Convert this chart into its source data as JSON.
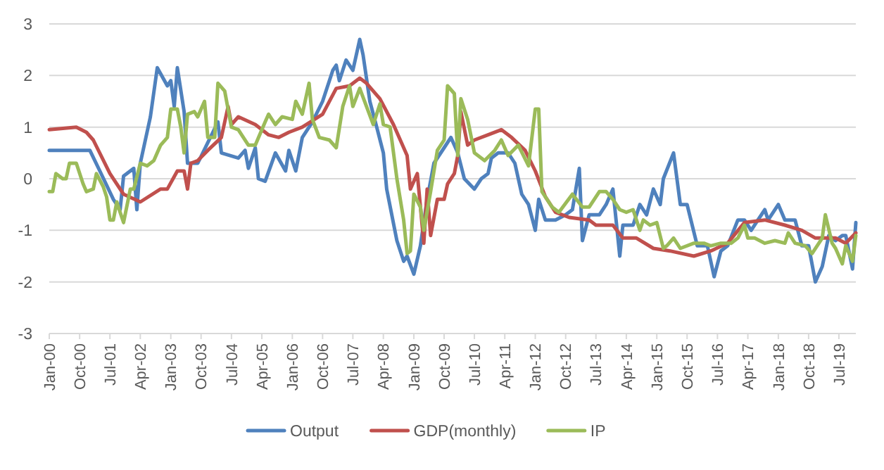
{
  "chart_data": {
    "type": "line",
    "xlim": [
      "2000-01",
      "2019-12"
    ],
    "xticks": [
      {
        "value": "2000-01",
        "label": "Jan-00"
      },
      {
        "value": "2000-10",
        "label": "Oct-00"
      },
      {
        "value": "2001-07",
        "label": "Jul-01"
      },
      {
        "value": "2002-04",
        "label": "Apr-02"
      },
      {
        "value": "2003-01",
        "label": "Jan-03"
      },
      {
        "value": "2003-10",
        "label": "Oct-03"
      },
      {
        "value": "2004-07",
        "label": "Jul-04"
      },
      {
        "value": "2005-04",
        "label": "Apr-05"
      },
      {
        "value": "2006-01",
        "label": "Jan-06"
      },
      {
        "value": "2006-10",
        "label": "Oct-06"
      },
      {
        "value": "2007-07",
        "label": "Jul-07"
      },
      {
        "value": "2008-04",
        "label": "Apr-08"
      },
      {
        "value": "2009-01",
        "label": "Jan-09"
      },
      {
        "value": "2009-10",
        "label": "Oct-09"
      },
      {
        "value": "2010-07",
        "label": "Jul-10"
      },
      {
        "value": "2011-04",
        "label": "Apr-11"
      },
      {
        "value": "2012-01",
        "label": "Jan-12"
      },
      {
        "value": "2012-10",
        "label": "Oct-12"
      },
      {
        "value": "2013-07",
        "label": "Jul-13"
      },
      {
        "value": "2014-04",
        "label": "Apr-14"
      },
      {
        "value": "2015-01",
        "label": "Jan-15"
      },
      {
        "value": "2015-10",
        "label": "Oct-15"
      },
      {
        "value": "2016-07",
        "label": "Jul-16"
      },
      {
        "value": "2017-04",
        "label": "Apr-17"
      },
      {
        "value": "2018-01",
        "label": "Jan-18"
      },
      {
        "value": "2018-10",
        "label": "Oct-18"
      },
      {
        "value": "2019-07",
        "label": "Jul-19"
      }
    ],
    "ylim": [
      -3,
      3
    ],
    "yticks": [
      -3,
      -2,
      -1,
      0,
      1,
      2,
      3
    ],
    "grid": "y",
    "legend": "bottom",
    "series": [
      {
        "name": "Output",
        "color": "#4f81bd",
        "x": [
          "2000-01",
          "2001-01",
          "2001-04",
          "2001-08",
          "2001-10",
          "2001-11",
          "2002-02",
          "2002-03",
          "2002-04",
          "2002-07",
          "2002-09",
          "2002-12",
          "2003-01",
          "2003-02",
          "2003-03",
          "2003-05",
          "2003-06",
          "2003-09",
          "2003-12",
          "2004-03",
          "2004-04",
          "2004-09",
          "2004-11",
          "2004-12",
          "2005-02",
          "2005-03",
          "2005-05",
          "2005-08",
          "2005-11",
          "2005-12",
          "2006-02",
          "2006-04",
          "2006-07",
          "2006-10",
          "2007-01",
          "2007-02",
          "2007-03",
          "2007-05",
          "2007-07",
          "2007-09",
          "2007-10",
          "2007-12",
          "2008-02",
          "2008-04",
          "2008-05",
          "2008-08",
          "2008-10",
          "2008-11",
          "2009-01",
          "2009-03",
          "2009-05",
          "2009-07",
          "2009-10",
          "2009-12",
          "2010-02",
          "2010-04",
          "2010-07",
          "2010-09",
          "2010-11",
          "2010-12",
          "2011-02",
          "2011-05",
          "2011-07",
          "2011-09",
          "2011-11",
          "2012-01",
          "2012-02",
          "2012-04",
          "2012-07",
          "2012-10",
          "2012-12",
          "2013-02",
          "2013-03",
          "2013-05",
          "2013-08",
          "2013-10",
          "2013-12",
          "2014-02",
          "2014-03",
          "2014-06",
          "2014-08",
          "2014-10",
          "2014-12",
          "2015-02",
          "2015-03",
          "2015-06",
          "2015-08",
          "2015-10",
          "2016-01",
          "2016-04",
          "2016-06",
          "2016-08",
          "2016-10",
          "2017-01",
          "2017-03",
          "2017-05",
          "2017-07",
          "2017-09",
          "2017-10",
          "2018-01",
          "2018-03",
          "2018-06",
          "2018-08",
          "2018-10",
          "2018-12",
          "2019-02",
          "2019-04",
          "2019-06",
          "2019-08",
          "2019-09",
          "2019-11",
          "2019-12"
        ],
        "values": [
          0.55,
          0.55,
          0.15,
          -0.4,
          -0.6,
          0.05,
          0.2,
          -0.6,
          0.3,
          1.2,
          2.15,
          1.8,
          1.9,
          1.4,
          2.15,
          1.3,
          0.3,
          0.3,
          0.7,
          1.1,
          0.5,
          0.4,
          0.55,
          0.2,
          0.6,
          0.0,
          -0.05,
          0.5,
          0.15,
          0.55,
          0.15,
          0.8,
          1.1,
          1.5,
          2.1,
          2.2,
          1.9,
          2.3,
          2.1,
          2.7,
          2.4,
          1.5,
          1.0,
          0.5,
          -0.2,
          -1.2,
          -1.6,
          -1.5,
          -1.85,
          -1.3,
          -0.4,
          0.3,
          0.6,
          0.8,
          0.5,
          0.0,
          -0.2,
          0.0,
          0.1,
          0.4,
          0.5,
          0.5,
          0.3,
          -0.3,
          -0.5,
          -1.0,
          -0.4,
          -0.8,
          -0.8,
          -0.7,
          -0.6,
          0.2,
          -1.2,
          -0.7,
          -0.7,
          -0.5,
          -0.2,
          -1.5,
          -0.9,
          -0.9,
          -0.5,
          -0.7,
          -0.2,
          -0.5,
          0.0,
          0.5,
          -0.5,
          -0.5,
          -1.3,
          -1.3,
          -1.9,
          -1.4,
          -1.3,
          -0.8,
          -0.8,
          -1.0,
          -0.8,
          -0.6,
          -0.8,
          -0.5,
          -0.8,
          -0.8,
          -1.3,
          -1.3,
          -2.0,
          -1.7,
          -1.1,
          -1.2,
          -1.1,
          -1.1,
          -1.75,
          -0.85
        ]
      },
      {
        "name": "GDP(monthly)",
        "color": "#c0504d",
        "x": [
          "2000-01",
          "2000-09",
          "2000-12",
          "2001-02",
          "2001-07",
          "2001-11",
          "2002-04",
          "2002-10",
          "2002-12",
          "2003-03",
          "2003-05",
          "2003-06",
          "2003-07",
          "2003-09",
          "2003-12",
          "2004-04",
          "2004-06",
          "2004-07",
          "2004-09",
          "2005-02",
          "2005-06",
          "2005-09",
          "2005-12",
          "2006-04",
          "2006-10",
          "2007-02",
          "2007-06",
          "2007-09",
          "2007-11",
          "2008-03",
          "2008-07",
          "2008-11",
          "2008-12",
          "2009-02",
          "2009-04",
          "2009-05",
          "2009-06",
          "2009-08",
          "2009-10",
          "2009-11",
          "2010-01",
          "2010-02",
          "2010-03",
          "2010-05",
          "2010-07",
          "2010-11",
          "2011-03",
          "2011-06",
          "2011-10",
          "2012-01",
          "2012-04",
          "2012-07",
          "2012-11",
          "2013-05",
          "2013-07",
          "2013-12",
          "2014-03",
          "2014-07",
          "2014-12",
          "2015-05",
          "2015-12",
          "2016-05",
          "2016-10",
          "2017-03",
          "2017-09",
          "2018-03",
          "2018-08",
          "2018-12",
          "2019-06",
          "2019-09",
          "2019-12"
        ],
        "values": [
          0.95,
          1.0,
          0.9,
          0.75,
          0.1,
          -0.3,
          -0.45,
          -0.2,
          -0.2,
          0.15,
          0.15,
          -0.2,
          0.3,
          0.35,
          0.55,
          0.8,
          1.4,
          1.05,
          1.2,
          1.05,
          0.85,
          0.8,
          0.9,
          1.0,
          1.25,
          1.75,
          1.8,
          1.95,
          1.85,
          1.55,
          1.05,
          0.45,
          -0.2,
          0.1,
          -1.25,
          -0.2,
          -1.1,
          -0.4,
          -0.4,
          -0.1,
          0.1,
          0.45,
          1.3,
          0.65,
          0.75,
          0.85,
          0.95,
          0.8,
          0.55,
          0.15,
          -0.35,
          -0.65,
          -0.75,
          -0.8,
          -0.9,
          -0.9,
          -1.15,
          -1.15,
          -1.35,
          -1.4,
          -1.5,
          -1.4,
          -1.25,
          -0.85,
          -0.8,
          -0.9,
          -1.0,
          -1.15,
          -1.15,
          -1.25,
          -1.05
        ]
      },
      {
        "name": "IP",
        "color": "#9bbb59",
        "x": [
          "2000-01",
          "2000-02",
          "2000-03",
          "2000-05",
          "2000-06",
          "2000-07",
          "2000-09",
          "2000-11",
          "2000-12",
          "2001-02",
          "2001-03",
          "2001-05",
          "2001-06",
          "2001-07",
          "2001-08",
          "2001-09",
          "2001-10",
          "2001-11",
          "2002-01",
          "2002-02",
          "2002-04",
          "2002-06",
          "2002-08",
          "2002-10",
          "2002-12",
          "2003-01",
          "2003-03",
          "2003-04",
          "2003-05",
          "2003-06",
          "2003-08",
          "2003-09",
          "2003-11",
          "2003-12",
          "2004-02",
          "2004-03",
          "2004-05",
          "2004-07",
          "2004-09",
          "2004-12",
          "2005-02",
          "2005-05",
          "2005-06",
          "2005-08",
          "2005-10",
          "2006-01",
          "2006-02",
          "2006-04",
          "2006-06",
          "2006-07",
          "2006-09",
          "2006-12",
          "2007-02",
          "2007-04",
          "2007-06",
          "2007-07",
          "2007-09",
          "2007-11",
          "2008-01",
          "2008-03",
          "2008-04",
          "2008-06",
          "2008-08",
          "2008-10",
          "2008-11",
          "2008-12",
          "2009-01",
          "2009-03",
          "2009-04",
          "2009-06",
          "2009-08",
          "2009-10",
          "2009-11",
          "2010-01",
          "2010-02",
          "2010-03",
          "2010-05",
          "2010-07",
          "2010-10",
          "2011-01",
          "2011-03",
          "2011-05",
          "2011-08",
          "2011-11",
          "2012-01",
          "2012-02",
          "2012-03",
          "2012-06",
          "2012-08",
          "2012-12",
          "2013-03",
          "2013-05",
          "2013-08",
          "2013-10",
          "2013-12",
          "2014-02",
          "2014-04",
          "2014-06",
          "2014-08",
          "2014-09",
          "2014-11",
          "2015-01",
          "2015-03",
          "2015-04",
          "2015-06",
          "2015-08",
          "2015-12",
          "2016-03",
          "2016-05",
          "2016-08",
          "2016-11",
          "2017-01",
          "2017-03",
          "2017-04",
          "2017-06",
          "2017-09",
          "2017-12",
          "2018-03",
          "2018-04",
          "2018-06",
          "2018-09",
          "2018-11",
          "2019-02",
          "2019-03",
          "2019-05",
          "2019-06",
          "2019-08",
          "2019-09",
          "2019-11",
          "2019-12"
        ],
        "values": [
          -0.25,
          -0.25,
          0.1,
          0.0,
          0.0,
          0.3,
          0.3,
          -0.1,
          -0.25,
          -0.2,
          0.1,
          -0.15,
          -0.35,
          -0.8,
          -0.8,
          -0.45,
          -0.65,
          -0.85,
          -0.2,
          -0.2,
          0.3,
          0.25,
          0.35,
          0.65,
          0.8,
          1.35,
          1.35,
          1.0,
          0.5,
          1.25,
          1.3,
          1.2,
          1.5,
          0.8,
          0.8,
          1.85,
          1.7,
          1.0,
          0.95,
          0.65,
          0.65,
          1.1,
          1.25,
          1.05,
          1.2,
          1.15,
          1.5,
          1.25,
          1.85,
          1.15,
          0.8,
          0.75,
          0.6,
          1.4,
          1.8,
          1.4,
          1.75,
          1.4,
          1.05,
          1.45,
          1.05,
          1.0,
          0.0,
          -0.8,
          -1.45,
          -1.4,
          -0.3,
          -0.55,
          -1.0,
          -0.25,
          0.55,
          0.75,
          1.8,
          1.65,
          0.45,
          1.55,
          1.15,
          0.5,
          0.35,
          0.55,
          0.75,
          0.45,
          0.65,
          0.25,
          1.35,
          1.35,
          -0.25,
          -0.55,
          -0.65,
          -0.3,
          -0.55,
          -0.55,
          -0.25,
          -0.25,
          -0.4,
          -0.6,
          -0.65,
          -0.6,
          -1.0,
          -0.8,
          -0.9,
          -0.85,
          -1.35,
          -1.3,
          -1.15,
          -1.35,
          -1.25,
          -1.25,
          -1.3,
          -1.25,
          -1.25,
          -1.15,
          -0.9,
          -1.15,
          -1.15,
          -1.25,
          -1.2,
          -1.25,
          -1.05,
          -1.25,
          -1.3,
          -1.45,
          -1.15,
          -0.7,
          -1.25,
          -1.35,
          -1.65,
          -1.3,
          -1.6,
          -1.1
        ]
      }
    ]
  }
}
